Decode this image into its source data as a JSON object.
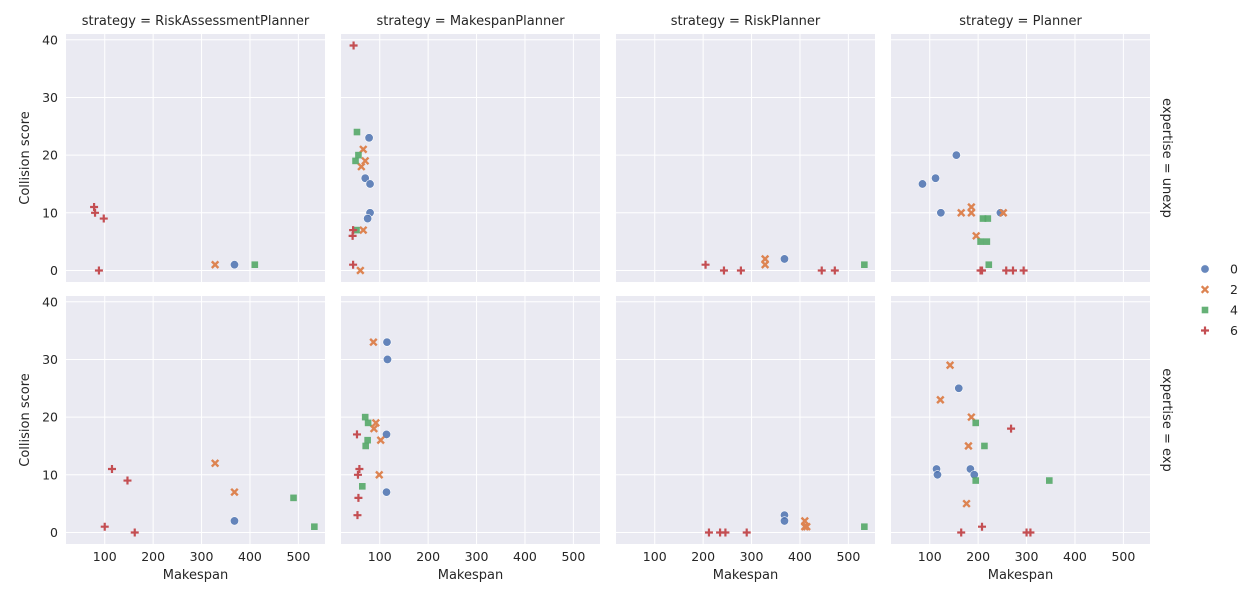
{
  "colors": {
    "0": "#4c72b0",
    "2": "#dd8452",
    "4": "#55a868",
    "6": "#c44e52",
    "panel_bg": "#eaeaf2",
    "text": "#262626"
  },
  "chart_data": {
    "type": "scatter",
    "xlabel": "Makespan",
    "ylabel": "Collision score",
    "xlim": [
      20,
      555
    ],
    "ylim": [
      -2,
      41
    ],
    "xticks": [
      100,
      200,
      300,
      400,
      500
    ],
    "yticks": [
      0,
      10,
      20,
      30,
      40
    ],
    "xtick_labels": [
      "100",
      "200",
      "300",
      "400",
      "500"
    ],
    "ytick_labels": [
      "0",
      "10",
      "20",
      "30",
      "40"
    ],
    "grid": true,
    "legend": {
      "placement": "right",
      "entries": [
        {
          "label": "0",
          "marker": "circle",
          "color": "#4c72b0"
        },
        {
          "label": "2",
          "marker": "x",
          "color": "#dd8452"
        },
        {
          "label": "4",
          "marker": "square",
          "color": "#55a868"
        },
        {
          "label": "6",
          "marker": "plus",
          "color": "#c44e52"
        }
      ]
    },
    "col_titles": [
      "strategy = RiskAssessmentPlanner",
      "strategy = MakespanPlanner",
      "strategy = RiskPlanner",
      "strategy = Planner"
    ],
    "row_titles": [
      "expertise = unexp",
      "expertise = exp"
    ],
    "panels": [
      {
        "row": 0,
        "col": 0,
        "series": [
          {
            "name": "0",
            "points": [
              [
                368,
                1
              ]
            ]
          },
          {
            "name": "2",
            "points": [
              [
                328,
                1
              ]
            ]
          },
          {
            "name": "4",
            "points": [
              [
                410,
                1
              ]
            ]
          },
          {
            "name": "6",
            "points": [
              [
                78,
                11
              ],
              [
                80,
                10
              ],
              [
                98,
                9
              ],
              [
                88,
                0
              ]
            ]
          }
        ]
      },
      {
        "row": 0,
        "col": 1,
        "series": [
          {
            "name": "0",
            "points": [
              [
                78,
                23
              ],
              [
                70,
                16
              ],
              [
                80,
                15
              ],
              [
                80,
                10
              ],
              [
                75,
                9
              ]
            ]
          },
          {
            "name": "2",
            "points": [
              [
                66,
                21
              ],
              [
                70,
                19
              ],
              [
                62,
                18
              ],
              [
                66,
                7
              ],
              [
                60,
                0
              ]
            ]
          },
          {
            "name": "4",
            "points": [
              [
                53,
                24
              ],
              [
                56,
                20
              ],
              [
                50,
                19
              ],
              [
                52,
                7
              ]
            ]
          },
          {
            "name": "6",
            "points": [
              [
                46,
                39
              ],
              [
                45,
                7
              ],
              [
                44,
                6
              ],
              [
                45,
                1
              ]
            ]
          }
        ]
      },
      {
        "row": 0,
        "col": 2,
        "series": [
          {
            "name": "0",
            "points": [
              [
                368,
                2
              ]
            ]
          },
          {
            "name": "2",
            "points": [
              [
                328,
                2
              ],
              [
                328,
                1
              ]
            ]
          },
          {
            "name": "4",
            "points": [
              [
                533,
                1
              ]
            ]
          },
          {
            "name": "6",
            "points": [
              [
                205,
                1
              ],
              [
                243,
                0
              ],
              [
                278,
                0
              ],
              [
                445,
                0
              ],
              [
                472,
                0
              ]
            ]
          }
        ]
      },
      {
        "row": 0,
        "col": 3,
        "series": [
          {
            "name": "0",
            "points": [
              [
                155,
                20
              ],
              [
                112,
                16
              ],
              [
                85,
                15
              ],
              [
                123,
                10
              ],
              [
                246,
                10
              ]
            ]
          },
          {
            "name": "2",
            "points": [
              [
                186,
                11
              ],
              [
                165,
                10
              ],
              [
                186,
                10
              ],
              [
                252,
                10
              ],
              [
                196,
                6
              ]
            ]
          },
          {
            "name": "4",
            "points": [
              [
                210,
                9
              ],
              [
                220,
                9
              ],
              [
                205,
                5
              ],
              [
                218,
                5
              ],
              [
                222,
                1
              ]
            ]
          },
          {
            "name": "6",
            "points": [
              [
                205,
                0
              ],
              [
                208,
                0
              ],
              [
                258,
                0
              ],
              [
                272,
                0
              ],
              [
                294,
                0
              ]
            ]
          }
        ]
      },
      {
        "row": 1,
        "col": 0,
        "series": [
          {
            "name": "0",
            "points": [
              [
                368,
                2
              ]
            ]
          },
          {
            "name": "2",
            "points": [
              [
                328,
                12
              ],
              [
                368,
                7
              ]
            ]
          },
          {
            "name": "4",
            "points": [
              [
                490,
                6
              ],
              [
                533,
                1
              ]
            ]
          },
          {
            "name": "6",
            "points": [
              [
                115,
                11
              ],
              [
                147,
                9
              ],
              [
                100,
                1
              ],
              [
                162,
                0
              ]
            ]
          }
        ]
      },
      {
        "row": 1,
        "col": 1,
        "series": [
          {
            "name": "0",
            "points": [
              [
                115,
                33
              ],
              [
                116,
                30
              ],
              [
                114,
                17
              ],
              [
                114,
                7
              ]
            ]
          },
          {
            "name": "2",
            "points": [
              [
                87,
                33
              ],
              [
                92,
                19
              ],
              [
                88,
                18
              ],
              [
                102,
                16
              ],
              [
                99,
                10
              ]
            ]
          },
          {
            "name": "4",
            "points": [
              [
                70,
                20
              ],
              [
                76,
                19
              ],
              [
                75,
                16
              ],
              [
                71,
                15
              ],
              [
                64,
                8
              ]
            ]
          },
          {
            "name": "6",
            "points": [
              [
                53,
                17
              ],
              [
                58,
                11
              ],
              [
                55,
                10
              ],
              [
                56,
                6
              ],
              [
                54,
                3
              ]
            ]
          }
        ]
      },
      {
        "row": 1,
        "col": 2,
        "series": [
          {
            "name": "0",
            "points": [
              [
                368,
                3
              ],
              [
                368,
                2
              ]
            ]
          },
          {
            "name": "2",
            "points": [
              [
                410,
                2
              ],
              [
                410,
                1
              ],
              [
                414,
                1
              ]
            ]
          },
          {
            "name": "4",
            "points": [
              [
                533,
                1
              ]
            ]
          },
          {
            "name": "6",
            "points": [
              [
                212,
                0
              ],
              [
                235,
                0
              ],
              [
                246,
                0
              ],
              [
                290,
                0
              ]
            ]
          }
        ]
      },
      {
        "row": 1,
        "col": 3,
        "series": [
          {
            "name": "0",
            "points": [
              [
                160,
                25
              ],
              [
                114,
                11
              ],
              [
                184,
                11
              ],
              [
                116,
                10
              ],
              [
                192,
                10
              ]
            ]
          },
          {
            "name": "2",
            "points": [
              [
                142,
                29
              ],
              [
                122,
                23
              ],
              [
                186,
                20
              ],
              [
                180,
                15
              ],
              [
                176,
                5
              ]
            ]
          },
          {
            "name": "4",
            "points": [
              [
                195,
                19
              ],
              [
                213,
                15
              ],
              [
                347,
                9
              ],
              [
                195,
                9
              ]
            ]
          },
          {
            "name": "6",
            "points": [
              [
                268,
                18
              ],
              [
                208,
                1
              ],
              [
                165,
                0
              ],
              [
                300,
                0
              ],
              [
                308,
                0
              ]
            ]
          }
        ]
      }
    ]
  }
}
